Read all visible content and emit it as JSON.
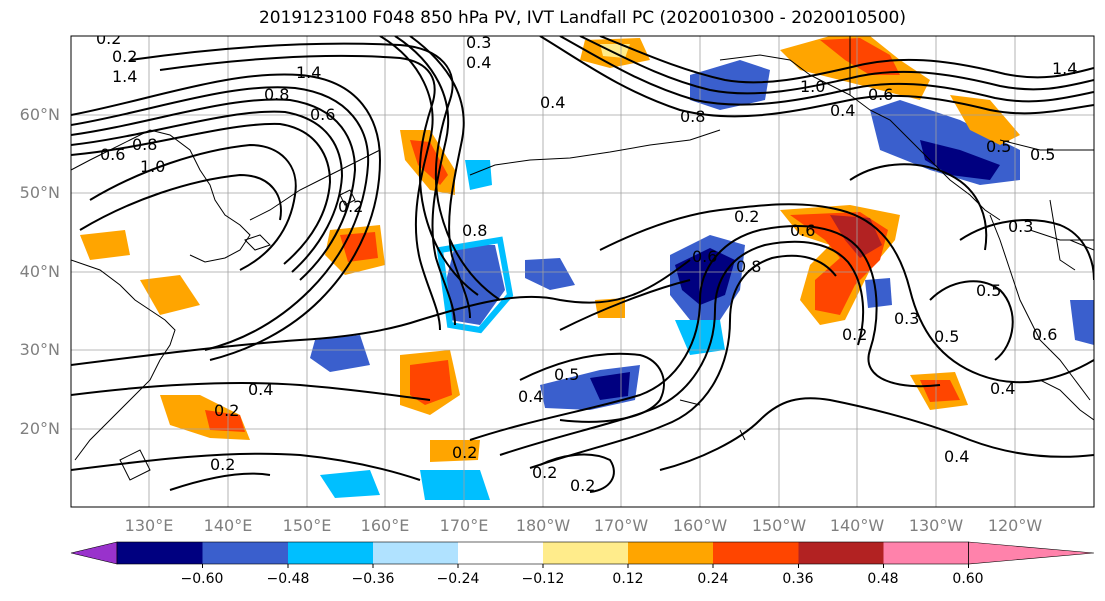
{
  "title": "2019123100 F048 850 hPa PV, IVT Landfall PC (2020010300 - 2020010500)",
  "lat_labels": [
    "60°N",
    "50°N",
    "40°N",
    "30°N",
    "20°N"
  ],
  "lon_labels": [
    "130°E",
    "140°E",
    "150°E",
    "160°E",
    "170°E",
    "180°W",
    "170°W",
    "160°W",
    "150°W",
    "140°W",
    "130°W",
    "120°W"
  ],
  "colorbar": {
    "colors": [
      "#9932cc",
      "#000080",
      "#3a5fcd",
      "#00bfff",
      "#b0e2ff",
      "#ffffff",
      "#ffec8b",
      "#ffa500",
      "#ff4500",
      "#b22222",
      "#ff82ab"
    ],
    "ticks": [
      "−0.60",
      "−0.48",
      "−0.36",
      "−0.24",
      "−0.12",
      "0.12",
      "0.24",
      "0.36",
      "0.48",
      "0.60"
    ]
  },
  "contour_labels": [
    "0.3",
    "0.4",
    "1.4",
    "0.2",
    "1.4",
    "0.8",
    "0.6",
    "0.4",
    "0.6",
    "0.4",
    "0.8",
    "1.0",
    "0.8",
    "0.6",
    "0.2",
    "0.6",
    "0.8",
    "0.2",
    "0.6",
    "0.8",
    "0.5",
    "0.3",
    "0.5",
    "0.5",
    "0.4",
    "0.3",
    "0.2",
    "0.4",
    "0.5",
    "0.2",
    "0.2",
    "0.2",
    "0.4",
    "0.2",
    "0.4",
    "0.2",
    "1.4",
    "1.0",
    "0.6",
    "0.2",
    "0.5"
  ]
}
